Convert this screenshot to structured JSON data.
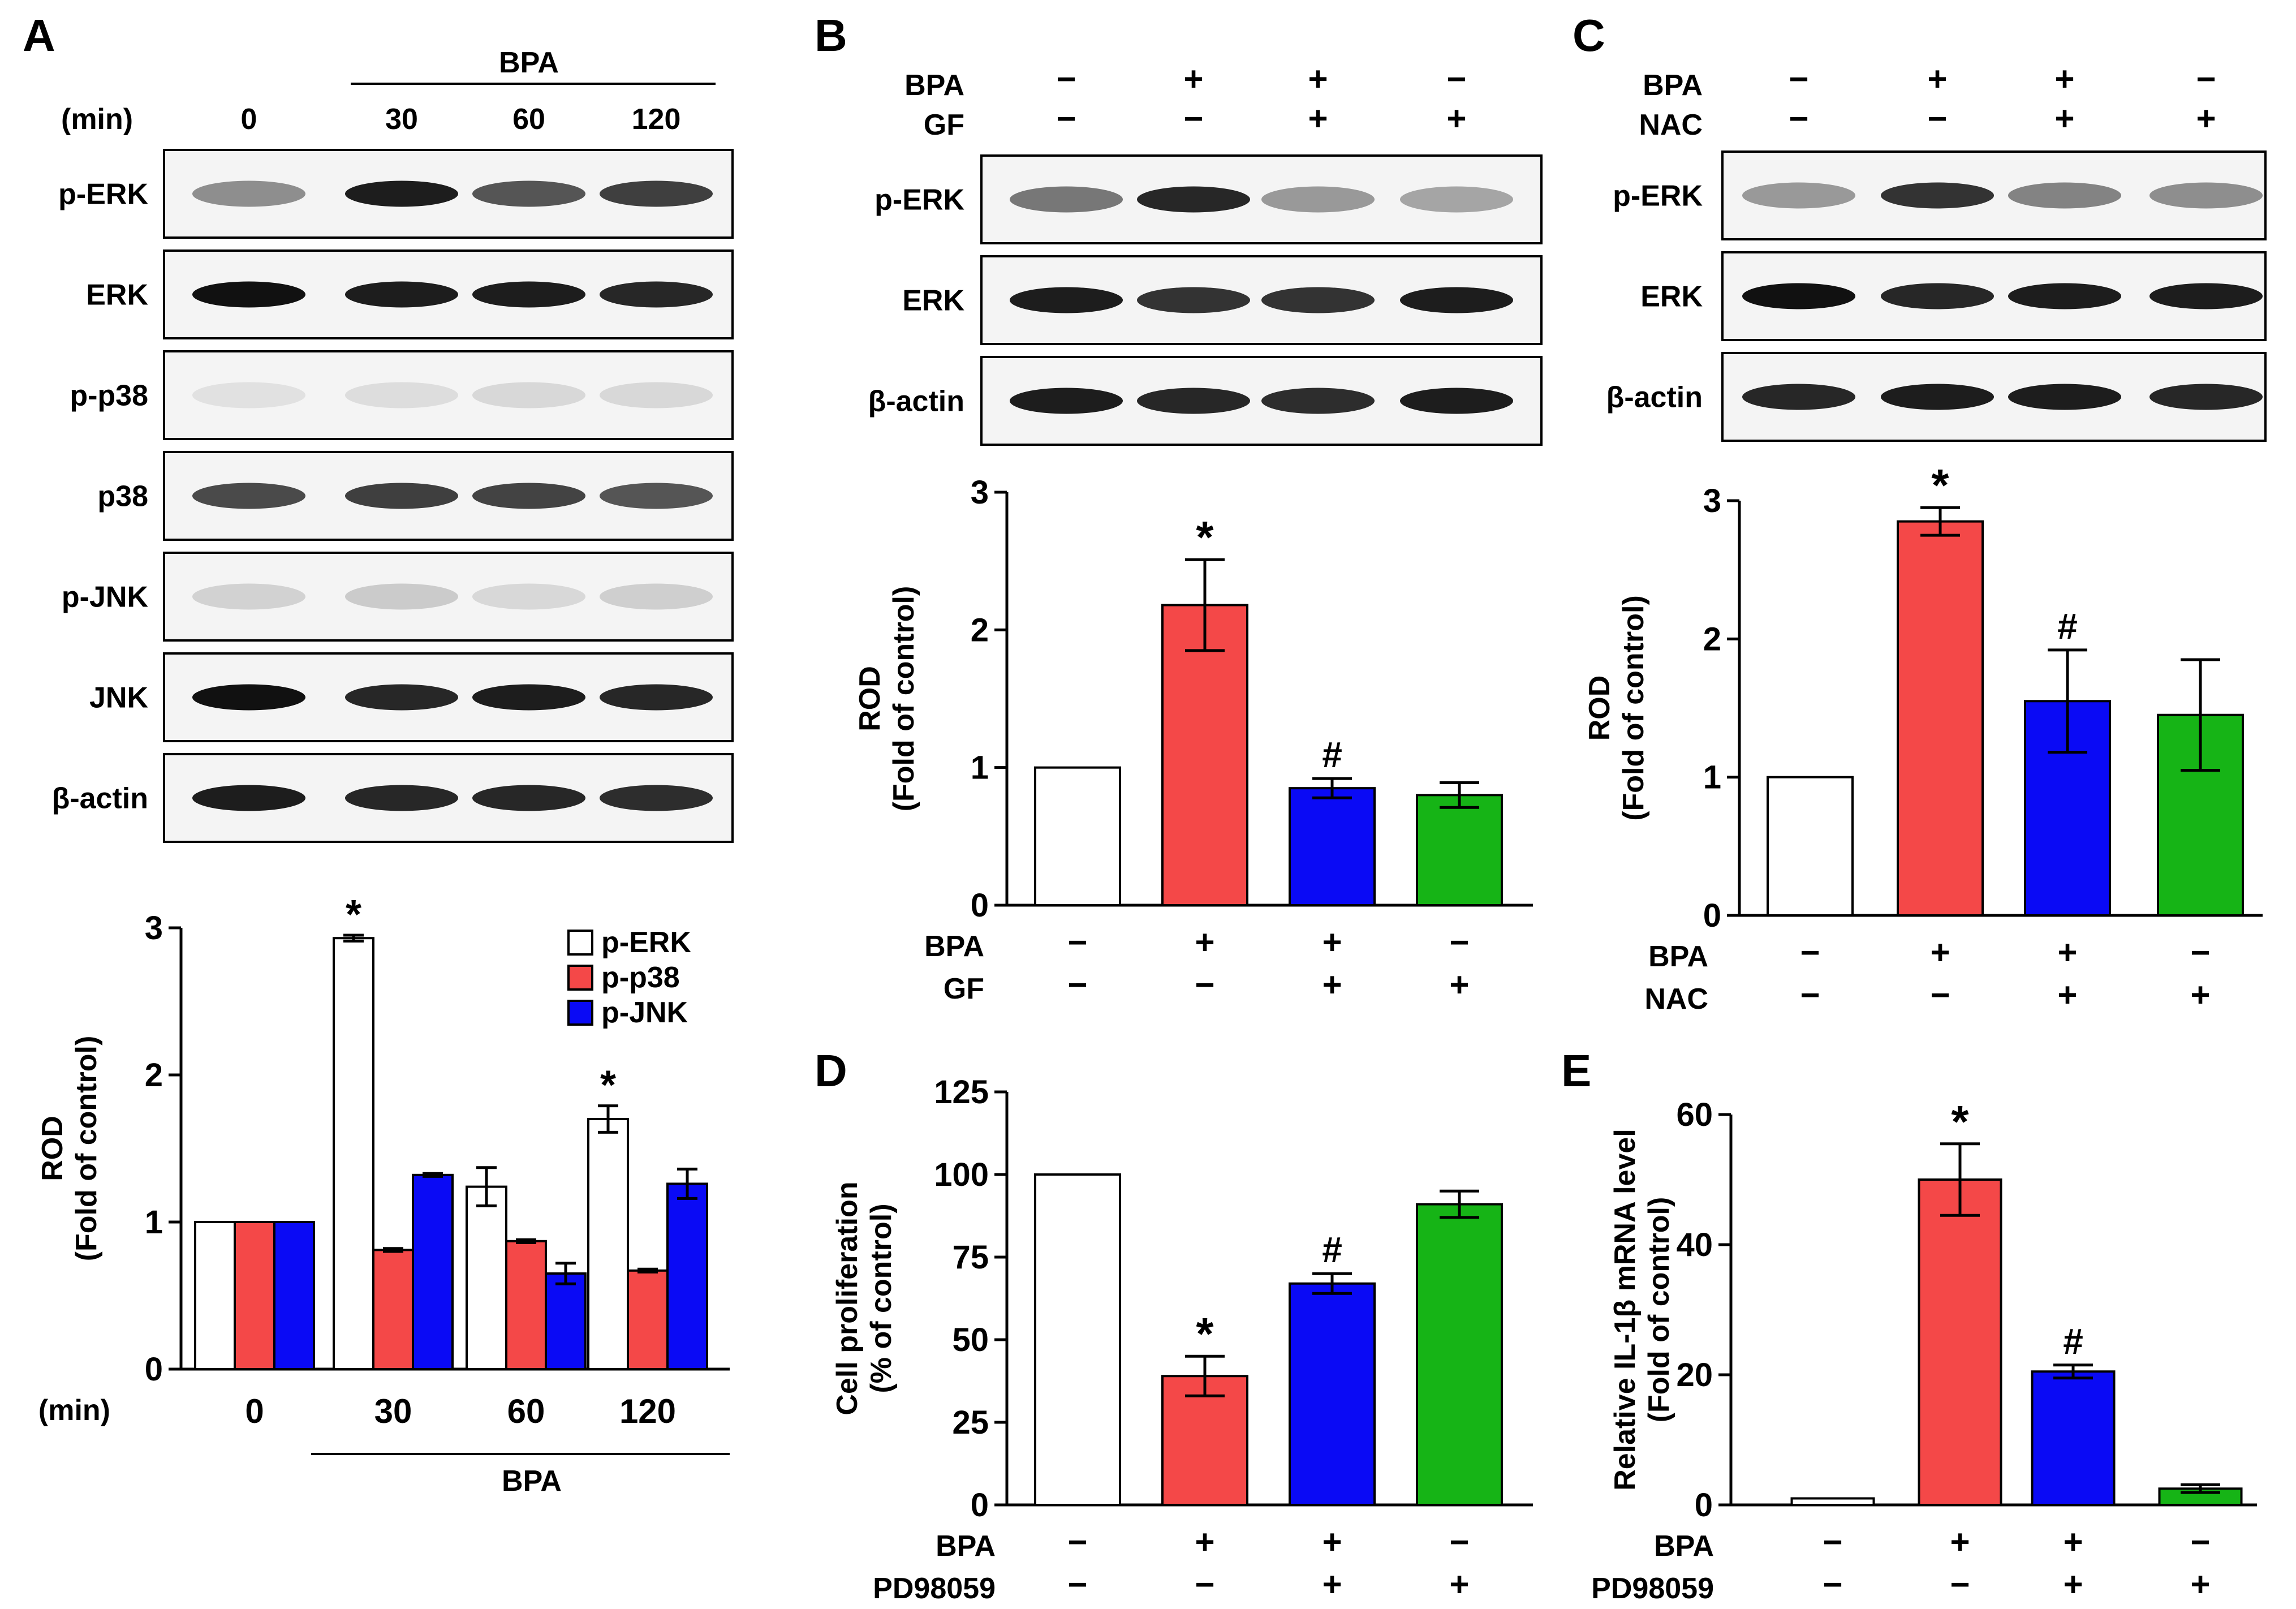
{
  "colors": {
    "white": "#ffffff",
    "red": "#f44848",
    "blue": "#0a0af5",
    "green": "#16b416",
    "black": "#000000"
  },
  "panels": {
    "A": {
      "letter": "A",
      "lanes": [
        "0",
        "30",
        "60",
        "120"
      ],
      "lanes_label": "(min)",
      "treatment": "BPA",
      "blot_labels": [
        "p-ERK",
        "ERK",
        "p-p38",
        "p38",
        "p-JNK",
        "JNK",
        "β-actin"
      ],
      "blots": [
        {
          "name": "p-ERK",
          "intensity": [
            0.45,
            0.95,
            0.7,
            0.8
          ]
        },
        {
          "name": "ERK",
          "intensity": [
            1,
            0.95,
            0.95,
            0.9
          ]
        },
        {
          "name": "p-p38",
          "intensity": [
            0.08,
            0.1,
            0.12,
            0.12
          ]
        },
        {
          "name": "p38",
          "intensity": [
            0.75,
            0.8,
            0.78,
            0.7
          ]
        },
        {
          "name": "p-JNK",
          "intensity": [
            0.15,
            0.18,
            0.12,
            0.16
          ]
        },
        {
          "name": "JNK",
          "intensity": [
            1,
            0.9,
            0.95,
            0.9
          ]
        },
        {
          "name": "β-actin",
          "intensity": [
            0.95,
            0.9,
            0.9,
            0.88
          ]
        }
      ]
    },
    "B": {
      "letter": "B",
      "row1": "BPA",
      "row2": "GF",
      "row1_signs": [
        "−",
        "+",
        "+",
        "−"
      ],
      "row2_signs": [
        "−",
        "−",
        "+",
        "+"
      ],
      "blot_labels": [
        "p-ERK",
        "ERK",
        "β-actin"
      ],
      "blots": [
        {
          "name": "p-ERK",
          "intensity": [
            0.55,
            0.9,
            0.4,
            0.35
          ]
        },
        {
          "name": "ERK",
          "intensity": [
            0.95,
            0.85,
            0.85,
            0.95
          ]
        },
        {
          "name": "β-actin",
          "intensity": [
            0.95,
            0.9,
            0.88,
            0.95
          ]
        }
      ]
    },
    "C": {
      "letter": "C",
      "row1": "BPA",
      "row2": "NAC",
      "row1_signs": [
        "−",
        "+",
        "+",
        "−"
      ],
      "row2_signs": [
        "−",
        "−",
        "+",
        "+"
      ],
      "blot_labels": [
        "p-ERK",
        "ERK",
        "β-actin"
      ],
      "blots": [
        {
          "name": "p-ERK",
          "intensity": [
            0.4,
            0.85,
            0.5,
            0.45
          ]
        },
        {
          "name": "ERK",
          "intensity": [
            1,
            0.9,
            0.95,
            0.95
          ]
        },
        {
          "name": "β-actin",
          "intensity": [
            0.9,
            0.95,
            0.95,
            0.9
          ]
        }
      ]
    },
    "D": {
      "letter": "D"
    },
    "E": {
      "letter": "E"
    }
  },
  "chart_data": [
    {
      "id": "A",
      "type": "bar",
      "ylabel": "ROD",
      "ylabel2": "(Fold of control)",
      "xlabel_prefix": "(min)",
      "categories": [
        "0",
        "30",
        "60",
        "120"
      ],
      "group_label": "BPA",
      "ylim": [
        0,
        3
      ],
      "yticks": [
        "0",
        "1",
        "2",
        "3"
      ],
      "series": [
        {
          "name": "p-ERK",
          "color": "#ffffff",
          "values": [
            1.0,
            2.93,
            1.24,
            1.7
          ],
          "errors": [
            0,
            0.02,
            0.13,
            0.09
          ]
        },
        {
          "name": "p-p38",
          "color": "#f44848",
          "values": [
            1.0,
            0.81,
            0.87,
            0.67
          ],
          "errors": [
            0,
            0.01,
            0.01,
            0.01
          ]
        },
        {
          "name": "p-JNK",
          "color": "#0a0af5",
          "values": [
            1.0,
            1.32,
            0.65,
            1.26
          ],
          "errors": [
            0,
            0.01,
            0.07,
            0.1
          ]
        }
      ],
      "legend": [
        "p-ERK",
        "p-p38",
        "p-JNK"
      ],
      "annotations": [
        {
          "category": "30",
          "series": "p-ERK",
          "text": "*"
        },
        {
          "category": "120",
          "series": "p-ERK",
          "text": "*"
        }
      ]
    },
    {
      "id": "B",
      "type": "bar",
      "ylabel": "ROD",
      "ylabel2": "(Fold of control)",
      "ylim": [
        0,
        3
      ],
      "yticks": [
        "0",
        "1",
        "2",
        "3"
      ],
      "values": [
        1.0,
        2.18,
        0.85,
        0.8
      ],
      "errors": [
        0,
        0.33,
        0.07,
        0.09
      ],
      "colors": [
        "#ffffff",
        "#f44848",
        "#0a0af5",
        "#16b416"
      ],
      "rows": [
        {
          "label": "BPA",
          "signs": [
            "−",
            "+",
            "+",
            "−"
          ]
        },
        {
          "label": "GF",
          "signs": [
            "−",
            "−",
            "+",
            "+"
          ]
        }
      ],
      "annotations": [
        "",
        "*",
        "#",
        ""
      ]
    },
    {
      "id": "C",
      "type": "bar",
      "ylabel": "ROD",
      "ylabel2": "(Fold of control)",
      "ylim": [
        0,
        3
      ],
      "yticks": [
        "0",
        "1",
        "2",
        "3"
      ],
      "values": [
        1.0,
        2.85,
        1.55,
        1.45
      ],
      "errors": [
        0,
        0.1,
        0.37,
        0.4
      ],
      "colors": [
        "#ffffff",
        "#f44848",
        "#0a0af5",
        "#16b416"
      ],
      "rows": [
        {
          "label": "BPA",
          "signs": [
            "−",
            "+",
            "+",
            "−"
          ]
        },
        {
          "label": "NAC",
          "signs": [
            "−",
            "−",
            "+",
            "+"
          ]
        }
      ],
      "annotations": [
        "",
        "*",
        "#",
        ""
      ]
    },
    {
      "id": "D",
      "type": "bar",
      "ylabel": "Cell proliferation",
      "ylabel2": "(% of control)",
      "ylim": [
        0,
        125
      ],
      "yticks": [
        "0",
        "25",
        "50",
        "75",
        "100",
        "125"
      ],
      "values": [
        100,
        39,
        67,
        91
      ],
      "errors": [
        0,
        6,
        3,
        4
      ],
      "colors": [
        "#ffffff",
        "#f44848",
        "#0a0af5",
        "#16b416"
      ],
      "rows": [
        {
          "label": "BPA",
          "signs": [
            "−",
            "+",
            "+",
            "−"
          ]
        },
        {
          "label": "PD98059",
          "signs": [
            "−",
            "−",
            "+",
            "+"
          ]
        }
      ],
      "annotations": [
        "",
        "*",
        "#",
        ""
      ]
    },
    {
      "id": "E",
      "type": "bar",
      "ylabel": "Relative IL-1β mRNA level",
      "ylabel2": "(Fold of control)",
      "ylim": [
        0,
        60
      ],
      "yticks": [
        "0",
        "20",
        "40",
        "60"
      ],
      "values": [
        1,
        50,
        20.5,
        2.5
      ],
      "errors": [
        0,
        5.5,
        1,
        0.6
      ],
      "colors": [
        "#ffffff",
        "#f44848",
        "#0a0af5",
        "#16b416"
      ],
      "rows": [
        {
          "label": "BPA",
          "signs": [
            "−",
            "+",
            "+",
            "−"
          ]
        },
        {
          "label": "PD98059",
          "signs": [
            "−",
            "−",
            "+",
            "+"
          ]
        }
      ],
      "annotations": [
        "",
        "*",
        "#",
        ""
      ]
    }
  ]
}
